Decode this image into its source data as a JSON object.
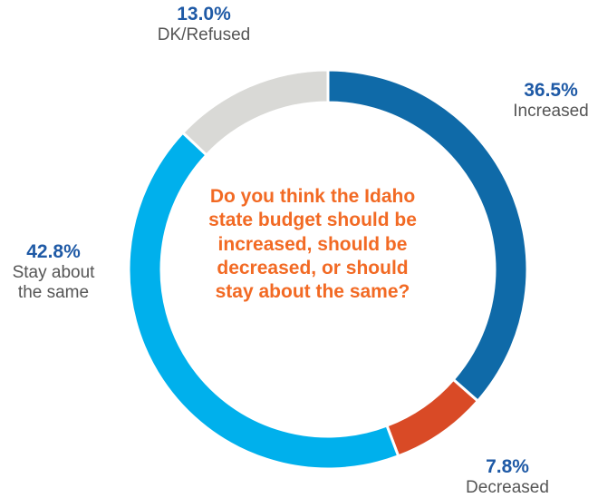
{
  "chart_data": {
    "type": "pie",
    "donut": true,
    "title": "Do you think the Idaho state budget should be increased, should be decreased, or should stay about the same?",
    "slices": [
      {
        "label": "Increased",
        "display_label": "Increased",
        "value": 36.5,
        "value_label": "36.5%",
        "color": "#0f6aa8"
      },
      {
        "label": "Decreased",
        "display_label": "Decreased",
        "value": 7.8,
        "value_label": "7.8%",
        "color": "#d94a26"
      },
      {
        "label": "Stay about the same",
        "display_label": "Stay about the same",
        "value": 42.8,
        "value_label": "42.8%",
        "color": "#00b0ec"
      },
      {
        "label": "DK/Refused",
        "display_label": "DK/Refused",
        "value": 13.0,
        "value_label": "13.0%",
        "color": "#d9d9d6"
      }
    ]
  },
  "colors": {
    "question_text": "#f26a24",
    "value_text": "#1f5aa6",
    "category_text": "#555555"
  }
}
